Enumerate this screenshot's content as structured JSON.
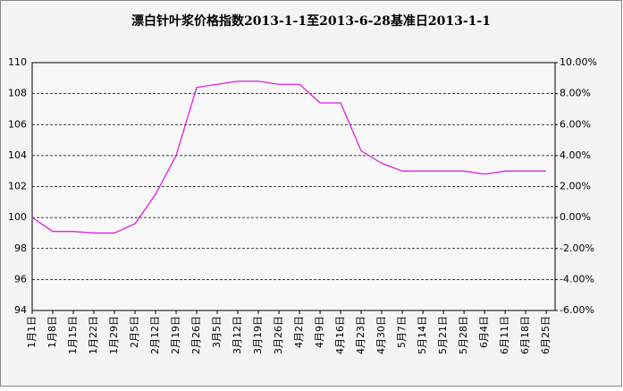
{
  "chart_data": {
    "type": "line",
    "title": "漂白针叶浆价格指数2013-1-1至2013-6-28基准日2013-1-1",
    "categories": [
      "1月1日",
      "1月8日",
      "1月15日",
      "1月22日",
      "1月29日",
      "2月5日",
      "2月12日",
      "2月19日",
      "2月26日",
      "3月5日",
      "3月12日",
      "3月19日",
      "3月26日",
      "4月2日",
      "4月9日",
      "4月16日",
      "4月23日",
      "4月30日",
      "5月7日",
      "5月14日",
      "5月21日",
      "5月28日",
      "6月4日",
      "6月11日",
      "6月18日",
      "6月25日"
    ],
    "series": [
      {
        "name": "漂白针叶浆价格指数",
        "color": "#e01ee0",
        "values": [
          100,
          99.1,
          99.1,
          99.0,
          99.0,
          99.6,
          101.5,
          104.0,
          108.4,
          108.6,
          108.8,
          108.8,
          108.6,
          108.6,
          107.4,
          107.4,
          104.3,
          103.5,
          103.0,
          103.0,
          103.0,
          103.0,
          102.8,
          103.0,
          103.0,
          103.0
        ]
      }
    ],
    "ylim": [
      94,
      110
    ],
    "yticks": [
      94,
      96,
      98,
      100,
      102,
      104,
      106,
      108,
      110
    ],
    "y2lim": [
      -6,
      10
    ],
    "y2ticks": [
      {
        "value": -6,
        "label": "-6.00%"
      },
      {
        "value": -4,
        "label": "-4.00%"
      },
      {
        "value": -2,
        "label": "-2.00%"
      },
      {
        "value": 0,
        "label": "0.00%"
      },
      {
        "value": 2,
        "label": "2.00%"
      },
      {
        "value": 4,
        "label": "4.00%"
      },
      {
        "value": 6,
        "label": "6.00%"
      },
      {
        "value": 8,
        "label": "8.00%"
      },
      {
        "value": 10,
        "label": "10.00%"
      }
    ],
    "grid": true
  }
}
